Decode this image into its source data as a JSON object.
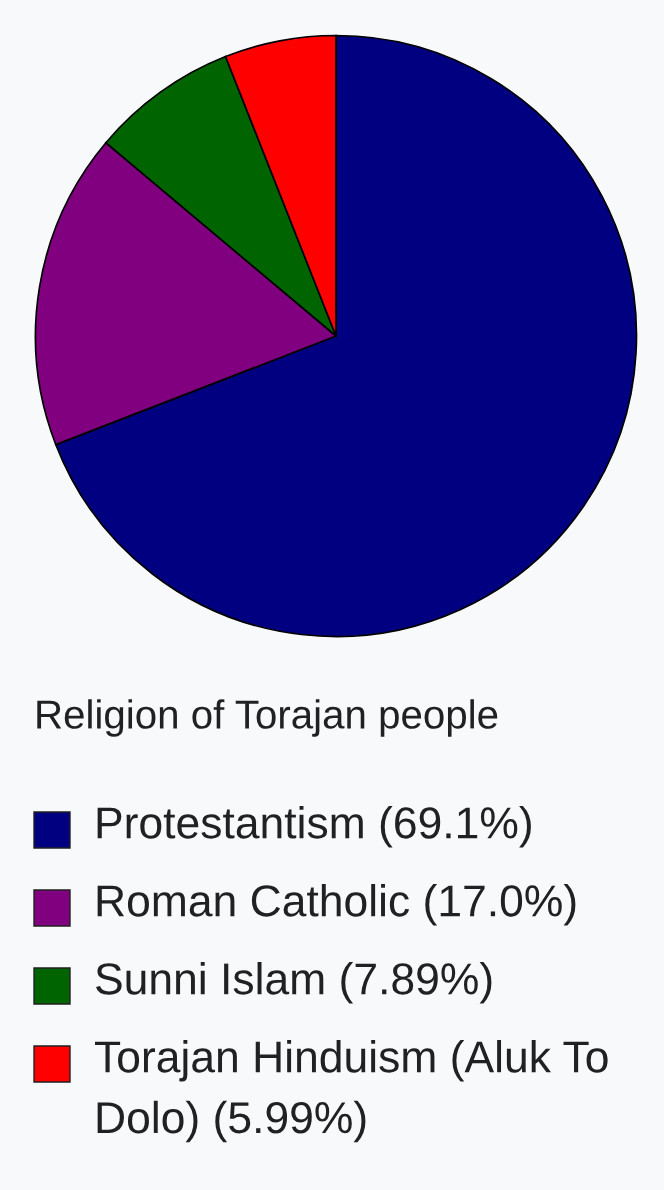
{
  "chart_data": {
    "type": "pie",
    "title": "Religion of Torajan people",
    "categories": [
      "Protestantism",
      "Roman Catholic",
      "Sunni Islam",
      "Torajan Hinduism (Aluk To Dolo)"
    ],
    "values": [
      69.1,
      17.0,
      7.89,
      5.99
    ],
    "colors": [
      "#000080",
      "#800080",
      "#006400",
      "#ff0000"
    ],
    "value_labels": [
      "(69.1%)",
      "(17.0%)",
      "(7.89%)",
      "(5.99%)"
    ],
    "legend": "bottom"
  }
}
